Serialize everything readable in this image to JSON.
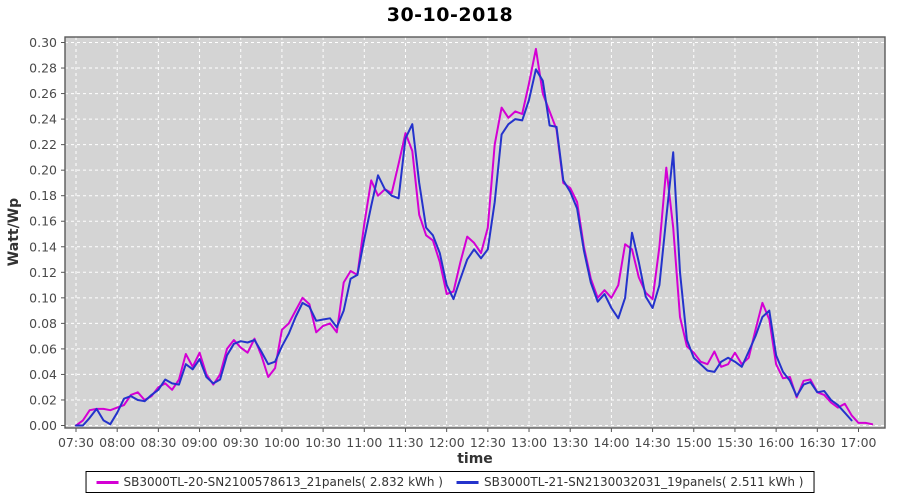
{
  "page": {
    "background": "#ffffff"
  },
  "chart_data": {
    "type": "line",
    "title": "30-10-2018",
    "xlabel": "time",
    "ylabel": "Watt/Wp",
    "ylim": [
      0.0,
      0.3
    ],
    "y_tick_step": 0.02,
    "grid": "white dashed gridlines on light-gray plot background",
    "legend_position": "bottom",
    "plot_bg": "#d4d4d4",
    "grid_color": "#ffffff",
    "axis_color": "#555555",
    "x_ticks": [
      "07:30",
      "08:00",
      "08:30",
      "09:00",
      "09:30",
      "10:00",
      "10:30",
      "11:00",
      "11:30",
      "12:00",
      "12:30",
      "13:00",
      "13:30",
      "14:00",
      "14:30",
      "15:00",
      "15:30",
      "16:00",
      "16:30",
      "17:00"
    ],
    "x": [
      "07:30",
      "07:35",
      "07:40",
      "07:45",
      "07:50",
      "07:55",
      "08:00",
      "08:05",
      "08:10",
      "08:15",
      "08:20",
      "08:25",
      "08:30",
      "08:35",
      "08:40",
      "08:45",
      "08:50",
      "08:55",
      "09:00",
      "09:05",
      "09:10",
      "09:15",
      "09:20",
      "09:25",
      "09:30",
      "09:35",
      "09:40",
      "09:45",
      "09:50",
      "09:55",
      "10:00",
      "10:05",
      "10:10",
      "10:15",
      "10:20",
      "10:25",
      "10:30",
      "10:35",
      "10:40",
      "10:45",
      "10:50",
      "10:55",
      "11:00",
      "11:05",
      "11:10",
      "11:15",
      "11:20",
      "11:25",
      "11:30",
      "11:35",
      "11:40",
      "11:45",
      "11:50",
      "11:55",
      "12:00",
      "12:05",
      "12:10",
      "12:15",
      "12:20",
      "12:25",
      "12:30",
      "12:35",
      "12:40",
      "12:45",
      "12:50",
      "12:55",
      "13:00",
      "13:05",
      "13:10",
      "13:15",
      "13:20",
      "13:25",
      "13:30",
      "13:35",
      "13:40",
      "13:45",
      "13:50",
      "13:55",
      "14:00",
      "14:05",
      "14:10",
      "14:15",
      "14:20",
      "14:25",
      "14:30",
      "14:35",
      "14:40",
      "14:45",
      "14:50",
      "14:55",
      "15:00",
      "15:05",
      "15:10",
      "15:15",
      "15:20",
      "15:25",
      "15:30",
      "15:35",
      "15:40",
      "15:45",
      "15:50",
      "15:55",
      "16:00",
      "16:05",
      "16:10",
      "16:15",
      "16:20",
      "16:25",
      "16:30",
      "16:35",
      "16:40",
      "16:45",
      "16:50",
      "16:55",
      "17:00",
      "17:05",
      "17:10"
    ],
    "series": [
      {
        "name": "SB3000TL-20-SN2100578613_21panels( 2.832 kWh )",
        "color": "#d400d4",
        "values": [
          0.0,
          0.004,
          0.012,
          0.013,
          0.013,
          0.012,
          0.014,
          0.016,
          0.024,
          0.026,
          0.02,
          0.023,
          0.03,
          0.033,
          0.028,
          0.036,
          0.056,
          0.046,
          0.057,
          0.04,
          0.032,
          0.04,
          0.06,
          0.067,
          0.061,
          0.057,
          0.068,
          0.055,
          0.038,
          0.045,
          0.075,
          0.08,
          0.09,
          0.1,
          0.095,
          0.073,
          0.078,
          0.08,
          0.073,
          0.112,
          0.121,
          0.118,
          0.158,
          0.192,
          0.18,
          0.185,
          0.182,
          0.205,
          0.229,
          0.215,
          0.165,
          0.149,
          0.145,
          0.128,
          0.103,
          0.105,
          0.128,
          0.148,
          0.143,
          0.135,
          0.155,
          0.22,
          0.249,
          0.241,
          0.246,
          0.244,
          0.268,
          0.295,
          0.26,
          0.246,
          0.232,
          0.19,
          0.186,
          0.175,
          0.14,
          0.115,
          0.1,
          0.106,
          0.1,
          0.11,
          0.142,
          0.138,
          0.116,
          0.104,
          0.099,
          0.14,
          0.202,
          0.155,
          0.085,
          0.062,
          0.057,
          0.05,
          0.048,
          0.058,
          0.046,
          0.048,
          0.057,
          0.048,
          0.053,
          0.075,
          0.096,
          0.083,
          0.048,
          0.037,
          0.038,
          0.022,
          0.035,
          0.036,
          0.026,
          0.024,
          0.018,
          0.014,
          0.017,
          0.008,
          0.002,
          0.002,
          0.001
        ]
      },
      {
        "name": "SB3000TL-21-SN2130032031_19panels( 2.511 kWh )",
        "color": "#2433cc",
        "values": [
          0.0,
          0.0,
          0.006,
          0.013,
          0.004,
          0.001,
          0.01,
          0.021,
          0.023,
          0.02,
          0.019,
          0.024,
          0.028,
          0.036,
          0.033,
          0.032,
          0.048,
          0.044,
          0.052,
          0.038,
          0.033,
          0.036,
          0.055,
          0.064,
          0.066,
          0.065,
          0.067,
          0.058,
          0.048,
          0.05,
          0.062,
          0.072,
          0.085,
          0.096,
          0.093,
          0.082,
          0.083,
          0.084,
          0.077,
          0.09,
          0.115,
          0.118,
          0.146,
          0.172,
          0.196,
          0.185,
          0.18,
          0.178,
          0.225,
          0.236,
          0.19,
          0.155,
          0.149,
          0.135,
          0.11,
          0.099,
          0.115,
          0.13,
          0.138,
          0.131,
          0.138,
          0.175,
          0.228,
          0.236,
          0.24,
          0.239,
          0.255,
          0.279,
          0.27,
          0.235,
          0.234,
          0.192,
          0.183,
          0.17,
          0.137,
          0.112,
          0.097,
          0.103,
          0.092,
          0.084,
          0.1,
          0.151,
          0.128,
          0.101,
          0.092,
          0.11,
          0.163,
          0.214,
          0.12,
          0.067,
          0.053,
          0.048,
          0.043,
          0.042,
          0.05,
          0.053,
          0.05,
          0.046,
          0.058,
          0.07,
          0.085,
          0.09,
          0.055,
          0.042,
          0.035,
          0.023,
          0.032,
          0.034,
          0.026,
          0.027,
          0.02,
          0.016,
          0.01,
          0.004,
          null,
          null,
          null
        ]
      }
    ]
  }
}
